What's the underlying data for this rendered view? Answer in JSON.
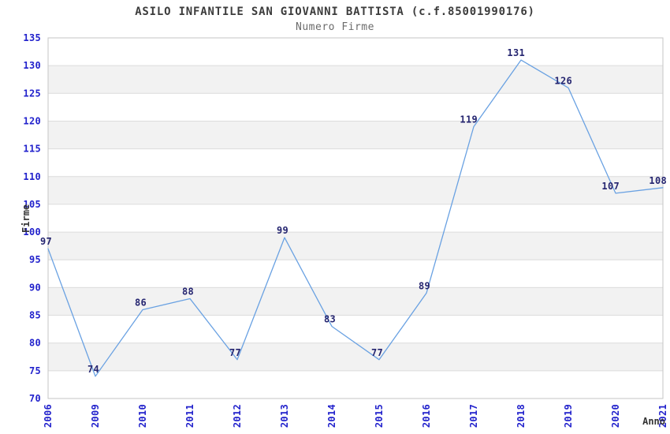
{
  "chart_data": {
    "type": "line",
    "title": "ASILO INFANTILE SAN GIOVANNI BATTISTA (c.f.85001990176)",
    "subtitle": "Numero Firme",
    "xlabel": "Anno",
    "ylabel": "Firme",
    "categories": [
      "2006",
      "2009",
      "2010",
      "2011",
      "2012",
      "2013",
      "2014",
      "2015",
      "2016",
      "2017",
      "2018",
      "2019",
      "2020",
      "2021"
    ],
    "series": [
      {
        "name": "Numero Firme",
        "values": [
          97,
          74,
          86,
          88,
          77,
          99,
          83,
          77,
          89,
          119,
          131,
          126,
          107,
          108
        ]
      }
    ],
    "ylim": [
      70,
      135
    ],
    "ytick_step": 5,
    "grid": true,
    "zebra_bands": true,
    "value_labels": true,
    "legend_position": "none",
    "colors": {
      "line": "#69a1e2",
      "tick_label": "#2222cc",
      "value_label": "#252570",
      "band": "#f2f2f2",
      "gridline": "#dcdcdc",
      "plot_border": "#c6c6c6",
      "title": "#3c3c3c",
      "subtitle": "#6b6b6b",
      "axis_title": "#333333",
      "background": "#ffffff"
    }
  }
}
